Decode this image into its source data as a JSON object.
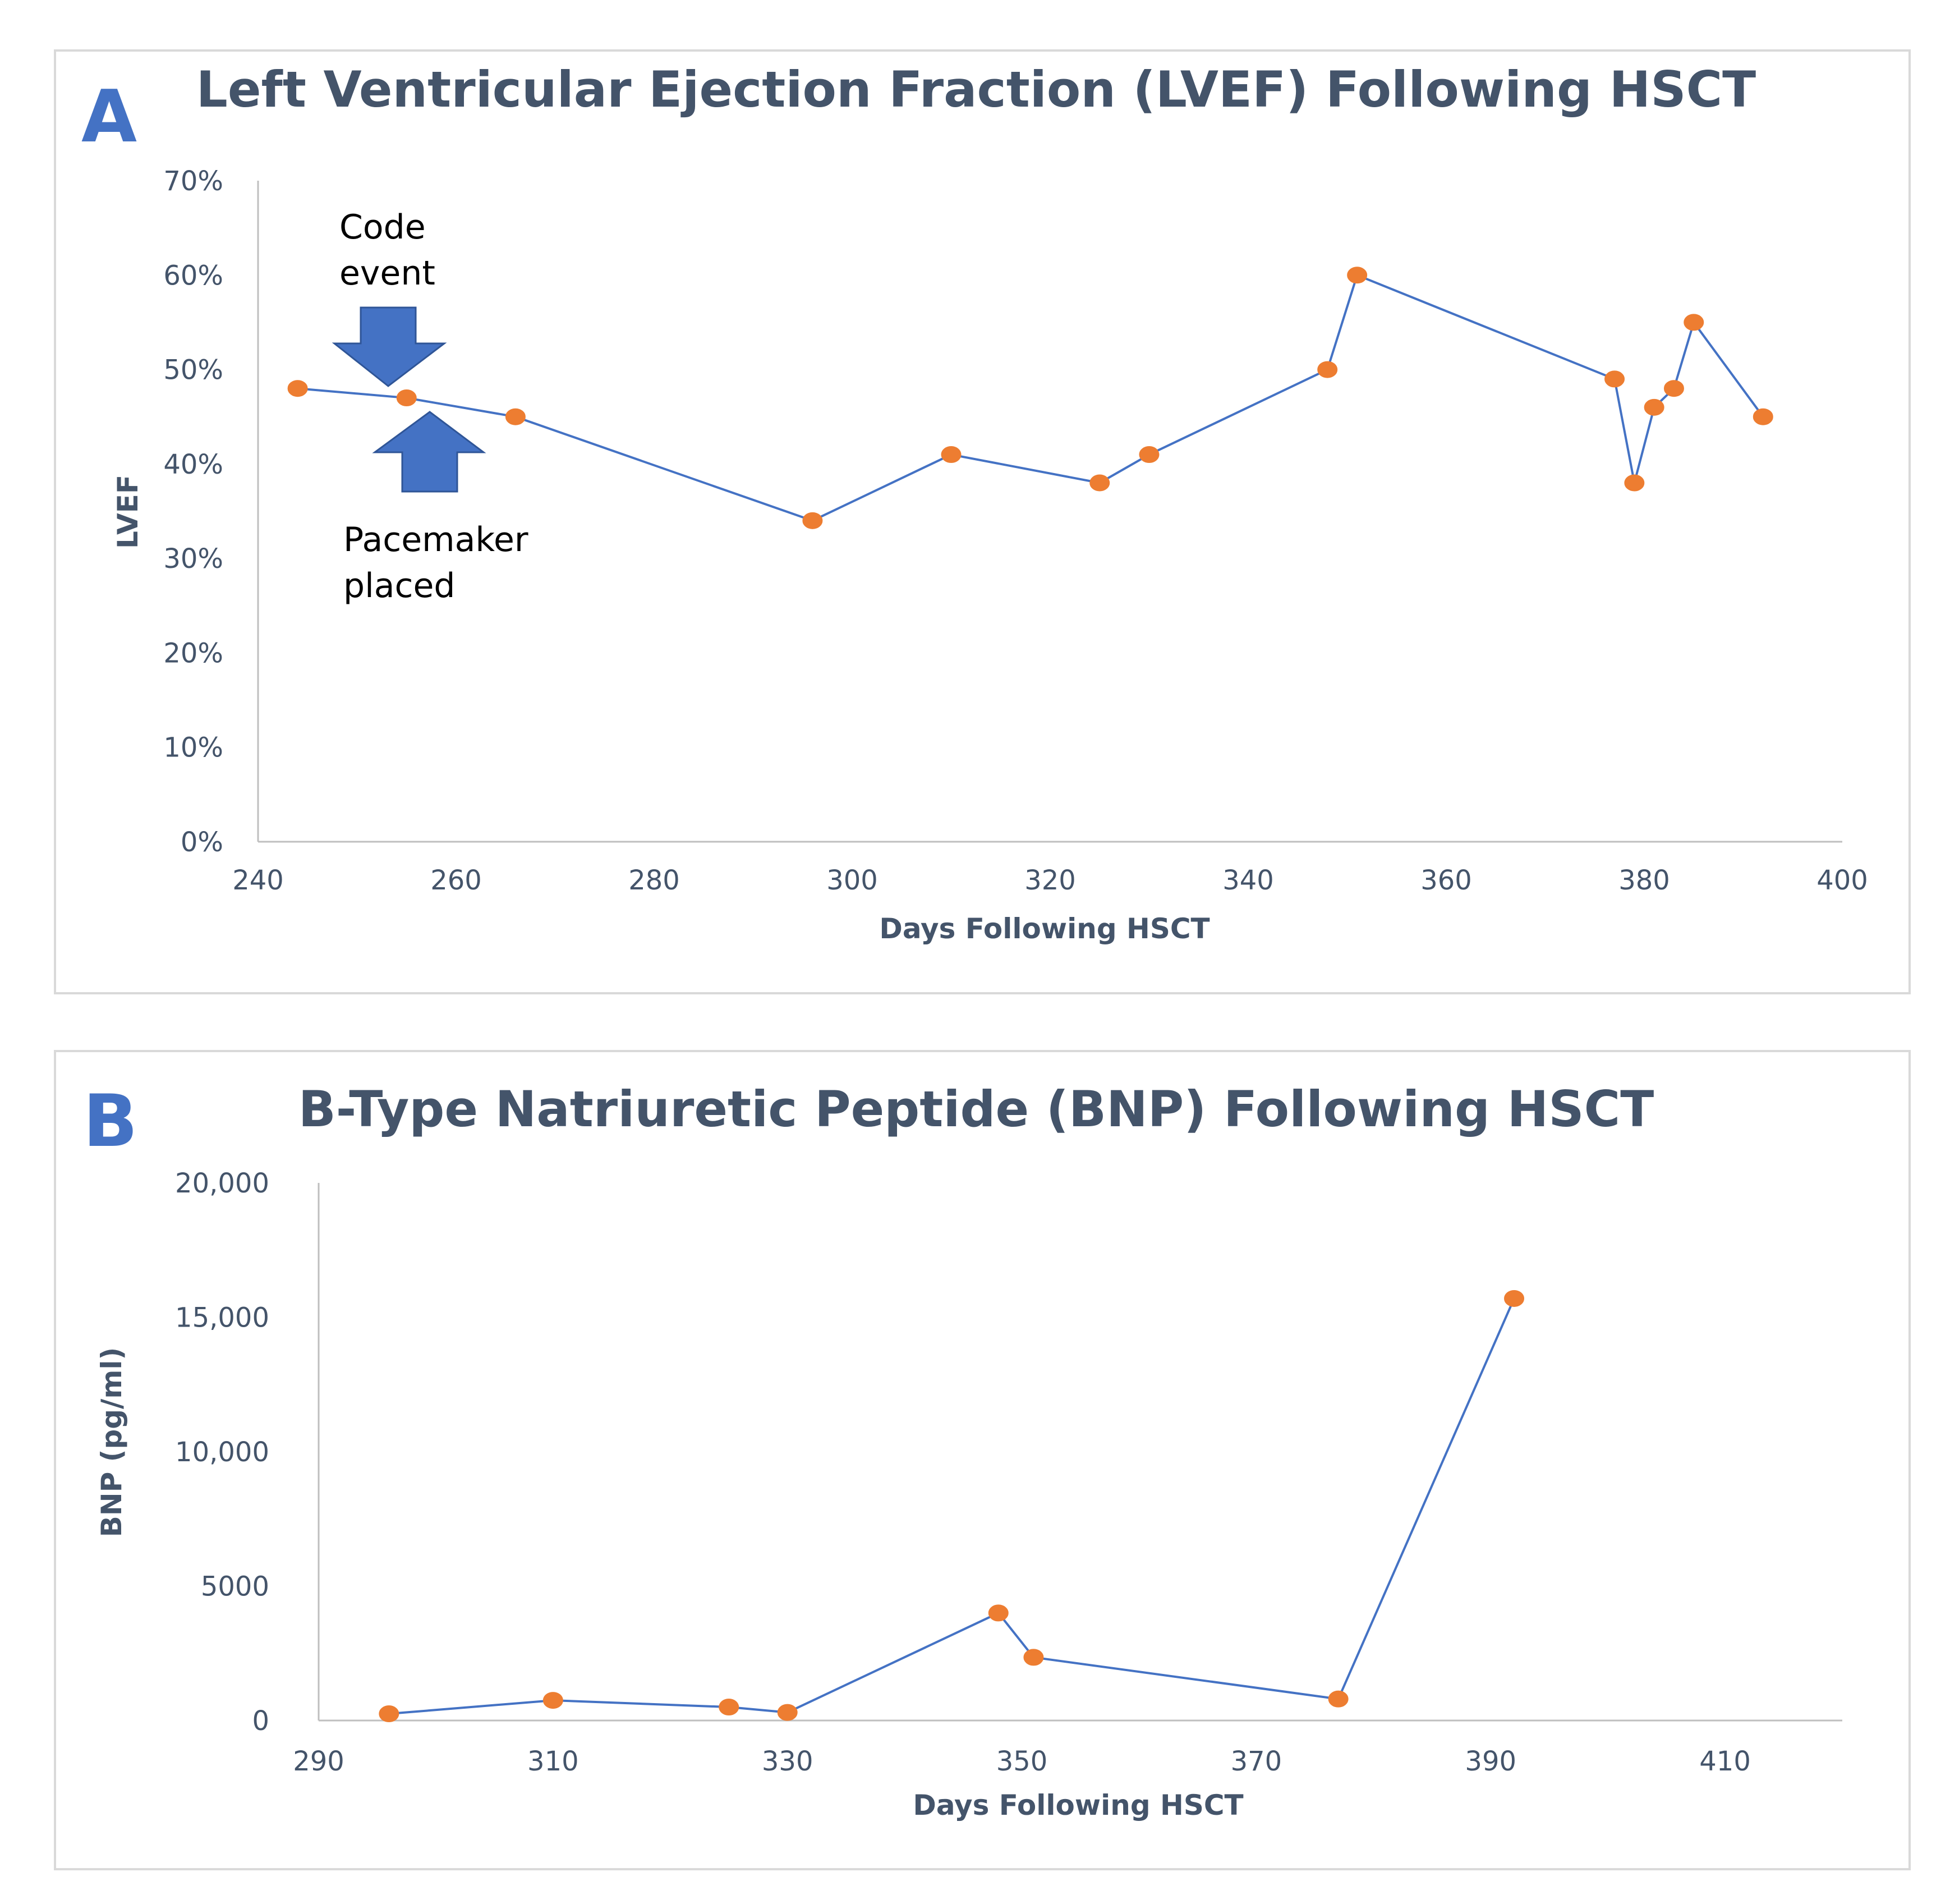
{
  "colors": {
    "series_line": "#4472c4",
    "marker": "#ed7d31",
    "text": "#44546a",
    "arrow": "#4472c4",
    "panel_letter": "#4472c4"
  },
  "chart_data": [
    {
      "panel": "A",
      "type": "line",
      "title": "Left Ventricular Ejection Fraction (LVEF) Following HSCT",
      "xlabel": "Days Following HSCT",
      "ylabel": "LVEF",
      "xlim": [
        240,
        400
      ],
      "ylim": [
        0,
        0.7
      ],
      "xticks": [
        240,
        260,
        280,
        300,
        320,
        340,
        360,
        380,
        400
      ],
      "xtick_labels": [
        "240",
        "260",
        "280",
        "300",
        "320",
        "340",
        "360",
        "380",
        "400"
      ],
      "yticks": [
        0,
        0.1,
        0.2,
        0.3,
        0.4,
        0.5,
        0.6,
        0.7
      ],
      "ytick_labels": [
        "0%",
        "10%",
        "20%",
        "30%",
        "40%",
        "50%",
        "60%",
        "70%"
      ],
      "grid": false,
      "series": [
        {
          "name": "LVEF",
          "x": [
            244,
            255,
            266,
            296,
            310,
            325,
            330,
            348,
            351,
            377,
            379,
            381,
            383,
            385,
            392
          ],
          "y": [
            0.48,
            0.47,
            0.45,
            0.34,
            0.41,
            0.38,
            0.41,
            0.5,
            0.6,
            0.49,
            0.38,
            0.46,
            0.48,
            0.55,
            0.45
          ]
        }
      ],
      "annotations": [
        {
          "lines": [
            "Code",
            "event"
          ],
          "x": 255,
          "arrow": "down"
        },
        {
          "lines": [
            "Pacemaker",
            "placed"
          ],
          "x": 255,
          "arrow": "up"
        }
      ]
    },
    {
      "panel": "B",
      "type": "line",
      "title": "B-Type Natriuretic Peptide (BNP) Following HSCT",
      "xlabel": "Days Following HSCT",
      "ylabel": "BNP (pg/ml)",
      "xlim": [
        290,
        420
      ],
      "ylim": [
        0,
        20000
      ],
      "xticks": [
        290,
        310,
        330,
        350,
        370,
        390,
        410
      ],
      "xtick_labels": [
        "290",
        "310",
        "330",
        "350",
        "370",
        "390",
        "410"
      ],
      "yticks": [
        0,
        5000,
        10000,
        15000,
        20000
      ],
      "ytick_labels": [
        "0",
        "5000",
        "10,000",
        "15,000",
        "20,000"
      ],
      "grid": false,
      "series": [
        {
          "name": "BNP",
          "x": [
            296,
            310,
            325,
            330,
            348,
            351,
            377,
            392
          ],
          "y": [
            250,
            750,
            500,
            300,
            4000,
            2350,
            800,
            15700
          ]
        }
      ]
    }
  ]
}
